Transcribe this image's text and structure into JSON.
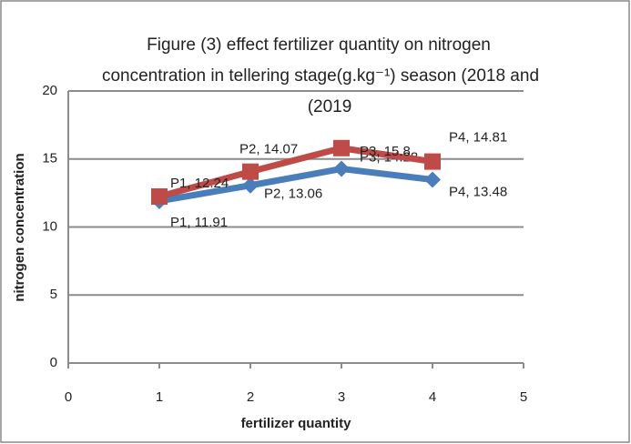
{
  "chart_data": {
    "type": "line",
    "title": [
      "Figure (3) effect  fertilizer quantity on nitrogen",
      "concentration in tellering stage(g.kg⁻¹) season (2018 and",
      "(2019"
    ],
    "x_label": "fertilizer quantity",
    "y_label": "nitrogen concentration",
    "x": [
      1,
      2,
      3,
      4
    ],
    "series": [
      {
        "color": "#4a7ebb",
        "values": [
          11.91,
          13.06,
          14.28,
          13.48
        ],
        "value_labels": [
          "P1, 11.91",
          "P2, 13.06",
          "P3, 14.28",
          "P4, 13.48"
        ]
      },
      {
        "color": "#be4b48",
        "values": [
          12.24,
          14.07,
          15.8,
          14.81
        ],
        "value_labels": [
          "P1, 12.24",
          "P2, 14.07",
          "P3, 15.8",
          "P4, 14.81"
        ]
      }
    ],
    "xlim": [
      0,
      5
    ],
    "xticks": [
      0,
      1,
      2,
      3,
      4,
      5
    ],
    "ylim": [
      0,
      20
    ],
    "yticks": [
      0,
      5,
      10,
      15,
      20
    ],
    "grid": true
  }
}
